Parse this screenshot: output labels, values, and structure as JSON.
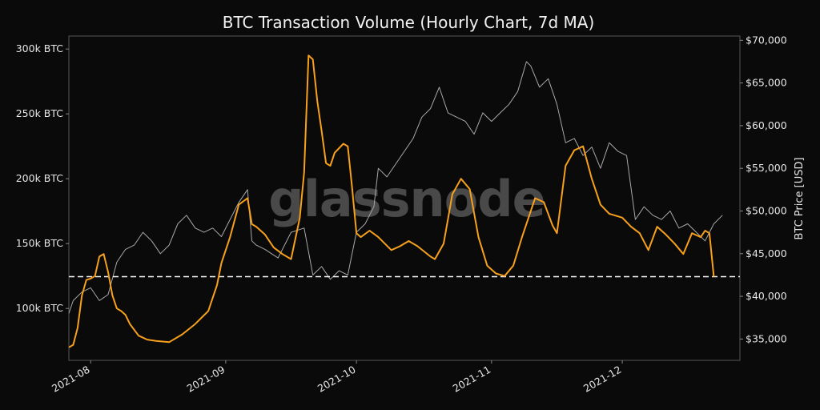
{
  "chart_data": {
    "type": "line",
    "title": "BTC Transaction Volume (Hourly Chart, 7d MA)",
    "watermark": "glassnode",
    "x_ticks": [
      "2021-08",
      "2021-09",
      "2021-10",
      "2021-11",
      "2021-12"
    ],
    "x_tick_dates": [
      "2021-08-01",
      "2021-09-01",
      "2021-10-01",
      "2021-11-01",
      "2021-12-01"
    ],
    "x_range": [
      "2021-07-27",
      "2021-12-28"
    ],
    "left_axis": {
      "label": "",
      "range": [
        60000,
        310000
      ],
      "ticks": [
        100000,
        150000,
        200000,
        250000,
        300000
      ],
      "tick_labels": [
        "100k BTC",
        "150k BTC",
        "200k BTC",
        "250k BTC",
        "300k BTC"
      ]
    },
    "right_axis": {
      "label": "BTC Price [USD]",
      "range": [
        32500,
        70500
      ],
      "ticks": [
        35000,
        40000,
        45000,
        50000,
        55000,
        60000,
        65000,
        70000
      ],
      "tick_labels": [
        "$35,000",
        "$40,000",
        "$45,000",
        "$50,000",
        "$55,000",
        "$60,000",
        "$65,000",
        "$70,000"
      ]
    },
    "reference_line": {
      "value": 124500,
      "axis": "left",
      "style": "dashed",
      "color": "#ffffff"
    },
    "grid": false,
    "legend": "none",
    "colors": {
      "background": "#0a0a0a",
      "volume": "#f7a01b",
      "price": "#a8a8a8",
      "axis": "#555555"
    },
    "series": [
      {
        "axis": "left",
        "x": [
          "2021-07-27",
          "2021-07-28",
          "2021-07-29",
          "2021-07-30",
          "2021-07-31",
          "2021-08-01",
          "2021-08-02",
          "2021-08-03",
          "2021-08-04",
          "2021-08-05",
          "2021-08-06",
          "2021-08-07",
          "2021-08-08",
          "2021-08-09",
          "2021-08-10",
          "2021-08-12",
          "2021-08-14",
          "2021-08-16",
          "2021-08-19",
          "2021-08-22",
          "2021-08-25",
          "2021-08-28",
          "2021-08-30",
          "2021-08-31",
          "2021-09-02",
          "2021-09-04",
          "2021-09-06",
          "2021-09-07",
          "2021-09-08",
          "2021-09-10",
          "2021-09-12",
          "2021-09-14",
          "2021-09-16",
          "2021-09-18",
          "2021-09-19",
          "2021-09-20",
          "2021-09-21",
          "2021-09-22",
          "2021-09-23",
          "2021-09-24",
          "2021-09-25",
          "2021-09-26",
          "2021-09-28",
          "2021-09-29",
          "2021-09-30",
          "2021-10-01",
          "2021-10-02",
          "2021-10-04",
          "2021-10-06",
          "2021-10-09",
          "2021-10-11",
          "2021-10-13",
          "2021-10-15",
          "2021-10-18",
          "2021-10-19",
          "2021-10-21",
          "2021-10-23",
          "2021-10-25",
          "2021-10-27",
          "2021-10-29",
          "2021-10-31",
          "2021-11-02",
          "2021-11-04",
          "2021-11-06",
          "2021-11-08",
          "2021-11-11",
          "2021-11-13",
          "2021-11-15",
          "2021-11-16",
          "2021-11-18",
          "2021-11-20",
          "2021-11-22",
          "2021-11-24",
          "2021-11-26",
          "2021-11-28",
          "2021-12-01",
          "2021-12-03",
          "2021-12-05",
          "2021-12-07",
          "2021-12-09",
          "2021-12-11",
          "2021-12-13",
          "2021-12-15",
          "2021-12-17",
          "2021-12-19",
          "2021-12-20",
          "2021-12-21",
          "2021-12-22"
        ],
        "values": [
          70000,
          72000,
          85000,
          110000,
          122000,
          123000,
          125000,
          140000,
          142000,
          128000,
          110000,
          100000,
          98000,
          95000,
          88000,
          79000,
          76000,
          75000,
          74000,
          80000,
          88000,
          98000,
          118000,
          135000,
          155000,
          180000,
          185000,
          165000,
          163000,
          157000,
          147000,
          142000,
          138000,
          170000,
          205000,
          295000,
          292000,
          260000,
          237000,
          212000,
          210000,
          220000,
          227000,
          225000,
          193000,
          158000,
          155000,
          160000,
          155000,
          145000,
          148000,
          152000,
          148000,
          140000,
          138000,
          150000,
          188000,
          200000,
          192000,
          155000,
          133000,
          127000,
          125000,
          133000,
          155000,
          185000,
          182000,
          164000,
          158000,
          210000,
          222000,
          225000,
          200000,
          180000,
          173000,
          170000,
          163000,
          158000,
          145000,
          163000,
          157000,
          150000,
          142000,
          158000,
          155000,
          160000,
          158000,
          124500
        ]
      },
      {
        "axis": "right",
        "x": [
          "2021-07-27",
          "2021-07-28",
          "2021-07-30",
          "2021-08-01",
          "2021-08-03",
          "2021-08-05",
          "2021-08-07",
          "2021-08-09",
          "2021-08-11",
          "2021-08-13",
          "2021-08-15",
          "2021-08-17",
          "2021-08-19",
          "2021-08-21",
          "2021-08-23",
          "2021-08-25",
          "2021-08-27",
          "2021-08-29",
          "2021-08-31",
          "2021-09-02",
          "2021-09-04",
          "2021-09-06",
          "2021-09-07",
          "2021-09-08",
          "2021-09-10",
          "2021-09-13",
          "2021-09-16",
          "2021-09-19",
          "2021-09-21",
          "2021-09-23",
          "2021-09-25",
          "2021-09-27",
          "2021-09-29",
          "2021-10-01",
          "2021-10-03",
          "2021-10-05",
          "2021-10-06",
          "2021-10-08",
          "2021-10-10",
          "2021-10-12",
          "2021-10-14",
          "2021-10-16",
          "2021-10-18",
          "2021-10-20",
          "2021-10-22",
          "2021-10-24",
          "2021-10-26",
          "2021-10-28",
          "2021-10-30",
          "2021-11-01",
          "2021-11-03",
          "2021-11-05",
          "2021-11-07",
          "2021-11-09",
          "2021-11-10",
          "2021-11-12",
          "2021-11-14",
          "2021-11-16",
          "2021-11-18",
          "2021-11-20",
          "2021-11-22",
          "2021-11-24",
          "2021-11-26",
          "2021-11-28",
          "2021-11-30",
          "2021-12-02",
          "2021-12-04",
          "2021-12-06",
          "2021-12-08",
          "2021-12-10",
          "2021-12-12",
          "2021-12-14",
          "2021-12-16",
          "2021-12-18",
          "2021-12-20",
          "2021-12-22",
          "2021-12-24"
        ],
        "values": [
          38000,
          39500,
          40500,
          41000,
          39500,
          40200,
          44000,
          45500,
          46000,
          47500,
          46500,
          45000,
          46000,
          48500,
          49500,
          48000,
          47500,
          48000,
          47000,
          49000,
          51000,
          52500,
          46500,
          46000,
          45500,
          44500,
          47500,
          48000,
          42500,
          43500,
          42000,
          43000,
          42500,
          47500,
          48500,
          50500,
          55000,
          54000,
          55500,
          57000,
          58500,
          61000,
          62000,
          64500,
          61500,
          61000,
          60500,
          59000,
          61500,
          60500,
          61500,
          62500,
          64000,
          67500,
          67000,
          64500,
          65500,
          62500,
          58000,
          58500,
          56500,
          57500,
          55000,
          58000,
          57000,
          56500,
          49000,
          50500,
          49500,
          49000,
          50000,
          48000,
          48500,
          47500,
          46500,
          48500,
          49500
        ]
      }
    ]
  }
}
